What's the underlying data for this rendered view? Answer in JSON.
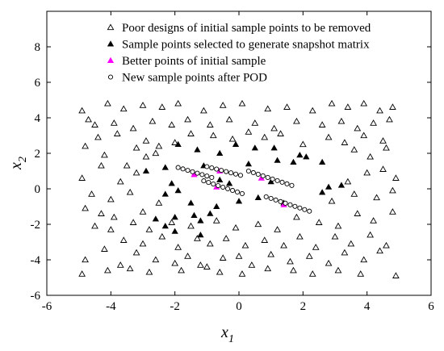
{
  "chart_data": {
    "type": "scatter",
    "title": "",
    "xlabel": "x",
    "xlabel_sub": "1",
    "ylabel": "x",
    "ylabel_sub": "2",
    "xlim": [
      -6,
      6
    ],
    "ylim": [
      -6,
      10
    ],
    "xticks": [
      -6,
      -4,
      -2,
      0,
      2,
      4,
      6
    ],
    "yticks": [
      -6,
      -4,
      -2,
      0,
      2,
      4,
      6,
      8
    ],
    "grid": false,
    "legend_position": "top-right",
    "series": [
      {
        "name": "Poor designs of initial sample points to be removed",
        "marker": "open-triangle",
        "color": "#000000",
        "points": [
          [
            -4.9,
            4.4
          ],
          [
            -4.5,
            3.6
          ],
          [
            -4.1,
            4.8
          ],
          [
            -3.6,
            4.5
          ],
          [
            -3.0,
            4.7
          ],
          [
            -2.4,
            4.6
          ],
          [
            -1.9,
            4.8
          ],
          [
            -1.1,
            4.4
          ],
          [
            -0.5,
            4.7
          ],
          [
            0.1,
            4.8
          ],
          [
            0.9,
            4.5
          ],
          [
            1.5,
            4.6
          ],
          [
            2.3,
            4.4
          ],
          [
            2.9,
            4.8
          ],
          [
            3.4,
            4.6
          ],
          [
            3.9,
            4.8
          ],
          [
            4.4,
            4.4
          ],
          [
            4.8,
            4.6
          ],
          [
            -4.7,
            3.9
          ],
          [
            -3.9,
            3.7
          ],
          [
            -3.3,
            3.4
          ],
          [
            -2.7,
            3.8
          ],
          [
            -2.1,
            3.6
          ],
          [
            -1.6,
            3.9
          ],
          [
            -0.9,
            3.6
          ],
          [
            -0.3,
            3.9
          ],
          [
            0.5,
            3.7
          ],
          [
            1.1,
            3.4
          ],
          [
            1.8,
            3.8
          ],
          [
            2.6,
            3.6
          ],
          [
            3.2,
            3.8
          ],
          [
            3.7,
            3.4
          ],
          [
            4.2,
            3.7
          ],
          [
            4.7,
            3.9
          ],
          [
            -4.4,
            2.9
          ],
          [
            -3.8,
            3.1
          ],
          [
            -3.2,
            2.3
          ],
          [
            -2.9,
            2.7
          ],
          [
            -2.5,
            2.4
          ],
          [
            -2.0,
            2.6
          ],
          [
            -1.5,
            3.1
          ],
          [
            -0.8,
            3.0
          ],
          [
            -0.2,
            2.8
          ],
          [
            0.3,
            3.2
          ],
          [
            0.8,
            2.9
          ],
          [
            1.3,
            3.1
          ],
          [
            2.0,
            2.5
          ],
          [
            2.8,
            2.9
          ],
          [
            3.3,
            2.6
          ],
          [
            3.9,
            3.0
          ],
          [
            4.5,
            2.7
          ],
          [
            -4.8,
            2.4
          ],
          [
            -4.2,
            1.9
          ],
          [
            -3.5,
            1.3
          ],
          [
            -2.9,
            1.8
          ],
          [
            -2.6,
            2.0
          ],
          [
            3.6,
            2.2
          ],
          [
            4.1,
            1.8
          ],
          [
            4.6,
            2.3
          ],
          [
            -4.9,
            0.6
          ],
          [
            -4.3,
            1.3
          ],
          [
            -3.7,
            0.4
          ],
          [
            -3.2,
            0.9
          ],
          [
            3.4,
            0.4
          ],
          [
            4.0,
            0.9
          ],
          [
            4.5,
            1.1
          ],
          [
            4.9,
            0.6
          ],
          [
            -4.6,
            -0.3
          ],
          [
            -4.0,
            -0.6
          ],
          [
            -3.4,
            -0.2
          ],
          [
            -3.0,
            -1.3
          ],
          [
            -2.5,
            -0.8
          ],
          [
            2.9,
            -0.7
          ],
          [
            3.6,
            -0.3
          ],
          [
            4.3,
            -0.5
          ],
          [
            4.8,
            -0.1
          ],
          [
            -4.8,
            -1.1
          ],
          [
            -4.3,
            -1.4
          ],
          [
            -3.9,
            -1.6
          ],
          [
            -3.3,
            -1.9
          ],
          [
            -2.8,
            -2.3
          ],
          [
            -2.1,
            -1.9
          ],
          [
            -1.5,
            -2.1
          ],
          [
            -0.7,
            -1.8
          ],
          [
            -0.1,
            -2.2
          ],
          [
            0.6,
            -2.0
          ],
          [
            1.2,
            -2.3
          ],
          [
            1.8,
            -1.6
          ],
          [
            2.5,
            -1.9
          ],
          [
            3.1,
            -2.1
          ],
          [
            3.7,
            -1.4
          ],
          [
            4.2,
            -1.8
          ],
          [
            4.8,
            -1.3
          ],
          [
            -4.5,
            -2.1
          ],
          [
            -4.0,
            -2.3
          ],
          [
            -3.6,
            -2.9
          ],
          [
            -3.0,
            -3.1
          ],
          [
            -2.4,
            -2.7
          ],
          [
            -1.9,
            -3.3
          ],
          [
            -1.3,
            -2.8
          ],
          [
            -0.9,
            -3.1
          ],
          [
            -0.4,
            -2.8
          ],
          [
            0.2,
            -3.2
          ],
          [
            0.8,
            -2.9
          ],
          [
            1.4,
            -3.2
          ],
          [
            1.9,
            -2.7
          ],
          [
            2.4,
            -3.3
          ],
          [
            3.0,
            -2.7
          ],
          [
            3.5,
            -3.1
          ],
          [
            4.1,
            -2.6
          ],
          [
            4.6,
            -3.2
          ],
          [
            -4.8,
            -4.0
          ],
          [
            -4.2,
            -3.4
          ],
          [
            -3.7,
            -4.3
          ],
          [
            -3.2,
            -3.6
          ],
          [
            -2.6,
            -4.0
          ],
          [
            -2.0,
            -4.2
          ],
          [
            -1.6,
            -3.8
          ],
          [
            -1.0,
            -4.4
          ],
          [
            -0.5,
            -3.9
          ],
          [
            0.0,
            -3.8
          ],
          [
            0.4,
            -4.3
          ],
          [
            1.0,
            -3.7
          ],
          [
            1.6,
            -4.1
          ],
          [
            2.2,
            -3.8
          ],
          [
            2.8,
            -4.2
          ],
          [
            3.3,
            -3.6
          ],
          [
            3.9,
            -4.0
          ],
          [
            4.4,
            -3.5
          ],
          [
            -4.9,
            -4.8
          ],
          [
            -4.1,
            -4.6
          ],
          [
            -3.4,
            -4.5
          ],
          [
            -2.8,
            -4.7
          ],
          [
            -1.8,
            -4.6
          ],
          [
            -1.2,
            -4.3
          ],
          [
            -0.6,
            -4.7
          ],
          [
            0.1,
            -4.8
          ],
          [
            0.9,
            -4.5
          ],
          [
            1.7,
            -4.6
          ],
          [
            2.3,
            -4.8
          ],
          [
            3.1,
            -4.6
          ],
          [
            3.8,
            -4.8
          ],
          [
            4.9,
            -4.9
          ]
        ]
      },
      {
        "name": "Sample points selected to generate snapshot matrix",
        "marker": "filled-triangle",
        "color": "#000000",
        "points": [
          [
            -1.9,
            2.5
          ],
          [
            -1.3,
            2.2
          ],
          [
            -0.6,
            2.0
          ],
          [
            -0.1,
            2.5
          ],
          [
            0.5,
            2.3
          ],
          [
            1.1,
            2.3
          ],
          [
            1.9,
            1.9
          ],
          [
            2.1,
            1.8
          ],
          [
            -2.9,
            1.0
          ],
          [
            -2.3,
            1.2
          ],
          [
            -1.1,
            1.3
          ],
          [
            0.3,
            1.4
          ],
          [
            1.2,
            1.6
          ],
          [
            1.7,
            1.5
          ],
          [
            2.6,
            1.5
          ],
          [
            -2.1,
            0.3
          ],
          [
            -1.9,
            -0.1
          ],
          [
            -0.6,
            0.5
          ],
          [
            -0.3,
            0.3
          ],
          [
            1.0,
            0.4
          ],
          [
            2.8,
            0.1
          ],
          [
            3.2,
            0.2
          ],
          [
            -2.3,
            -0.3
          ],
          [
            -1.5,
            -0.8
          ],
          [
            -0.7,
            -1.0
          ],
          [
            0.0,
            -0.7
          ],
          [
            0.6,
            -0.5
          ],
          [
            1.4,
            -0.8
          ],
          [
            2.6,
            -0.2
          ],
          [
            -2.6,
            -1.7
          ],
          [
            -2.0,
            -1.6
          ],
          [
            -1.4,
            -1.5
          ],
          [
            -1.2,
            -1.8
          ],
          [
            -0.9,
            -1.4
          ],
          [
            -2.3,
            -2.1
          ],
          [
            -2.0,
            -2.4
          ],
          [
            -1.2,
            -2.6
          ]
        ]
      },
      {
        "name": "Better points of initial sample",
        "marker": "filled-triangle",
        "color": "#ff00ff",
        "points": [
          [
            -1.4,
            0.8
          ],
          [
            -0.6,
            1.0
          ],
          [
            -0.7,
            0.1
          ],
          [
            0.7,
            0.6
          ],
          [
            1.4,
            -0.9
          ]
        ]
      },
      {
        "name": "New sample points after POD",
        "marker": "open-circle",
        "color": "#000000",
        "points": [
          [
            -1.9,
            1.2
          ],
          [
            -1.75,
            1.12
          ],
          [
            -1.6,
            1.04
          ],
          [
            -1.45,
            0.96
          ],
          [
            -1.3,
            0.88
          ],
          [
            -1.15,
            0.8
          ],
          [
            -1.0,
            0.72
          ],
          [
            -0.85,
            0.64
          ],
          [
            -1.0,
            1.25
          ],
          [
            -0.85,
            1.18
          ],
          [
            -0.7,
            1.11
          ],
          [
            -0.55,
            1.04
          ],
          [
            -0.4,
            0.97
          ],
          [
            -0.25,
            0.9
          ],
          [
            -0.1,
            0.83
          ],
          [
            0.05,
            0.76
          ],
          [
            -1.1,
            0.45
          ],
          [
            -0.95,
            0.36
          ],
          [
            -0.8,
            0.27
          ],
          [
            -0.65,
            0.18
          ],
          [
            -0.5,
            0.09
          ],
          [
            -0.35,
            0.0
          ],
          [
            -0.2,
            -0.09
          ],
          [
            -0.05,
            -0.18
          ],
          [
            0.1,
            -0.27
          ],
          [
            0.3,
            1.0
          ],
          [
            0.45,
            0.91
          ],
          [
            0.6,
            0.82
          ],
          [
            0.75,
            0.73
          ],
          [
            0.9,
            0.64
          ],
          [
            1.05,
            0.55
          ],
          [
            1.2,
            0.46
          ],
          [
            1.35,
            0.37
          ],
          [
            1.5,
            0.28
          ],
          [
            1.65,
            0.19
          ],
          [
            0.85,
            -0.45
          ],
          [
            1.0,
            -0.54
          ],
          [
            1.15,
            -0.63
          ],
          [
            1.3,
            -0.72
          ],
          [
            1.45,
            -0.81
          ],
          [
            1.6,
            -0.9
          ],
          [
            1.75,
            -0.99
          ],
          [
            1.9,
            -1.08
          ],
          [
            2.05,
            -1.17
          ],
          [
            2.2,
            -1.26
          ]
        ]
      }
    ]
  }
}
